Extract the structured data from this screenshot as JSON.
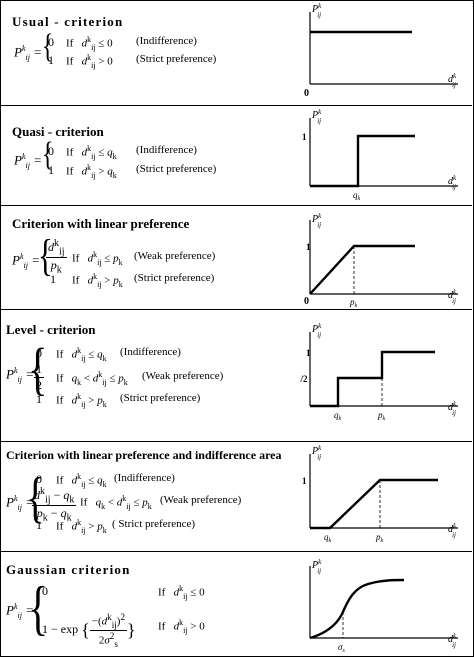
{
  "rows": [
    {
      "title": "Usual - criterion",
      "fn": "P",
      "cases": [
        {
          "val": "0",
          "cond": "If  d ≤ 0",
          "note": "(Indifference)"
        },
        {
          "val": "1",
          "cond": "If  d > 0",
          "note": "(Strict preference)"
        }
      ]
    },
    {
      "title": "Quasi - criterion",
      "cases": [
        {
          "val": "0",
          "cond": "If  d ≤ q",
          "note": "(Indifference)"
        },
        {
          "val": "1",
          "cond": "If  d > q",
          "note": "(Strict preference)"
        }
      ]
    },
    {
      "title": "Criterion with linear preference",
      "cases": [
        {
          "val": "d / p",
          "cond": "If  d ≤ p",
          "note": "(Weak preference)"
        },
        {
          "val": "1",
          "cond": "If  d > p",
          "note": "(Strict preference)"
        }
      ]
    },
    {
      "title": "Level - criterion",
      "cases": [
        {
          "val": "0",
          "cond": "If  d ≤ q",
          "note": "(Indifference)"
        },
        {
          "val": "1/2",
          "cond": "If  q < d ≤ p",
          "note": "(Weak preference)"
        },
        {
          "val": "1",
          "cond": "If  d > p",
          "note": "(Strict preference)"
        }
      ]
    },
    {
      "title": "Criterion with linear preference and indifference area",
      "cases": [
        {
          "val": "0",
          "cond": "If  d ≤ q",
          "note": "(Indifference)"
        },
        {
          "val": "(d − q)/(p − q)",
          "cond": "If  q < d ≤ p",
          "note": "(Weak preference)"
        },
        {
          "val": "1",
          "cond": "If  d > p",
          "note": "( Strict preference)"
        }
      ]
    },
    {
      "title": "Gaussian criterion",
      "cases": [
        {
          "val": "0",
          "cond": "If  d ≤ 0",
          "note": ""
        },
        {
          "val": "1 − exp{ −(d)² / 2σ² }",
          "cond": "If  d > 0",
          "note": ""
        }
      ]
    }
  ],
  "labels": {
    "origin": "0",
    "one": "1",
    "half": "1/2",
    "P": "P",
    "d": "d",
    "sup_k": "k",
    "sub_ij": "ij",
    "q": "q",
    "p": "p",
    "sigma": "σ",
    "sub_k": "k",
    "sub_s": "s",
    "if": "If",
    "exp": "exp",
    "two": "2"
  }
}
